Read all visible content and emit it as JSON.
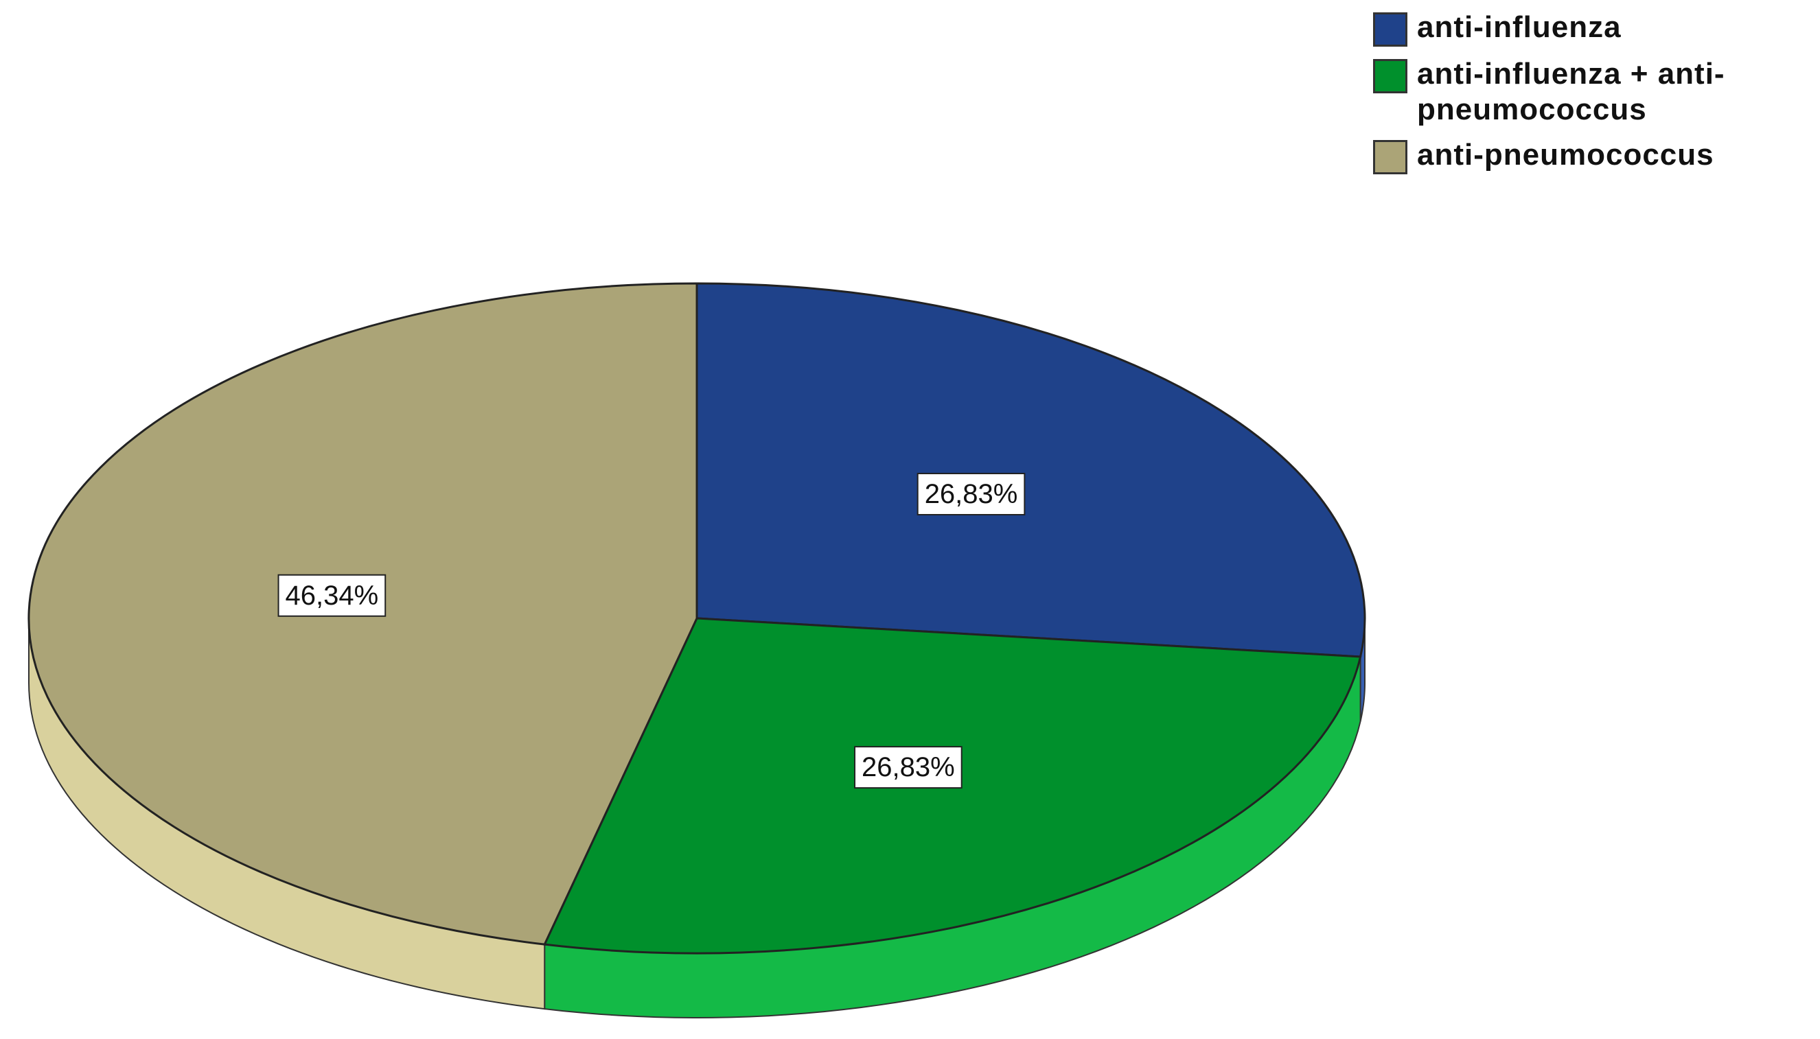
{
  "chart_data": {
    "type": "pie",
    "categories": [
      "anti-influenza",
      "anti-influenza + anti-pneumococcus",
      "anti-pneumococcus"
    ],
    "values": [
      26.83,
      26.83,
      46.34
    ],
    "value_labels": [
      "26,83%",
      "26,83%",
      "46,34%"
    ],
    "colors": [
      "#1f428a",
      "#00902c",
      "#aba477"
    ],
    "legend": "top-right"
  }
}
